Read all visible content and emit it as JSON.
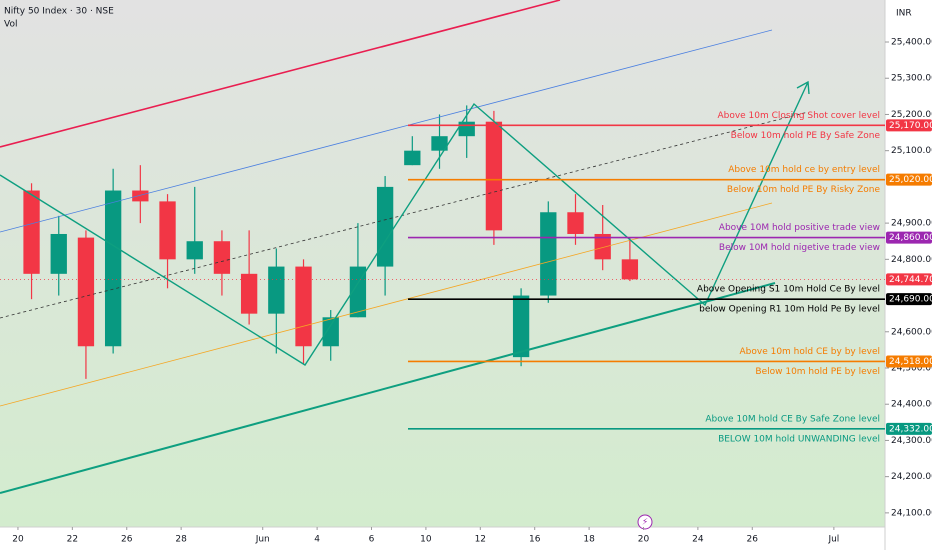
{
  "chart_data": {
    "type": "candlestick",
    "title": "Nifty 50 Index · 30 · NSE",
    "subtitle": "Vol",
    "currency": "INR",
    "up_color": "#089981",
    "down_color": "#f23645",
    "x": [
      0,
      1,
      2,
      3,
      4,
      5,
      6,
      7,
      8,
      9,
      10,
      11,
      12,
      13,
      14,
      15,
      16,
      17,
      18,
      19,
      20,
      21,
      22
    ],
    "open": [
      24990,
      24760,
      24860,
      24560,
      24990,
      24960,
      24800,
      24850,
      24760,
      24650,
      24780,
      24560,
      24640,
      24780,
      25060,
      25100,
      25140,
      25180,
      24530,
      24700,
      24930,
      24870,
      24800
    ],
    "high": [
      25010,
      24920,
      24880,
      25050,
      25060,
      24980,
      25000,
      24880,
      24880,
      24830,
      24800,
      24660,
      24900,
      25030,
      25140,
      25200,
      25225,
      25210,
      24720,
      24960,
      24980,
      24950,
      24860
    ],
    "low": [
      24690,
      24700,
      24470,
      24540,
      24900,
      24720,
      24760,
      24700,
      24620,
      24540,
      24510,
      24520,
      24640,
      24700,
      25060,
      25050,
      25080,
      24840,
      24505,
      24680,
      24840,
      24770,
      24740
    ],
    "close": [
      24760,
      24870,
      24560,
      24990,
      24960,
      24800,
      24850,
      24760,
      24650,
      24780,
      24560,
      24640,
      24780,
      25000,
      25100,
      25140,
      25180,
      24880,
      24700,
      24930,
      24870,
      24800,
      24744.7
    ],
    "xlim": [
      -0.66,
      31.88
    ],
    "xticks": [
      {
        "value": 0,
        "label": "20"
      },
      {
        "value": 2,
        "label": "22"
      },
      {
        "value": 4,
        "label": "26"
      },
      {
        "value": 6,
        "label": "28"
      },
      {
        "value": 9,
        "label": "Jun"
      },
      {
        "value": 11,
        "label": "4"
      },
      {
        "value": 13,
        "label": "6"
      },
      {
        "value": 15,
        "label": "10"
      },
      {
        "value": 17,
        "label": "12"
      },
      {
        "value": 19,
        "label": "16"
      },
      {
        "value": 21,
        "label": "18"
      },
      {
        "value": 23,
        "label": "20"
      },
      {
        "value": 25,
        "label": "24"
      },
      {
        "value": 27,
        "label": "26"
      },
      {
        "value": 30,
        "label": "Jul"
      }
    ],
    "ylim": [
      24061,
      25516
    ],
    "yticks": [
      {
        "value": 25400,
        "label": "25,400.00"
      },
      {
        "value": 25300,
        "label": "25,300.00"
      },
      {
        "value": 25200,
        "label": "25,200.00"
      },
      {
        "value": 25100,
        "label": "25,100.00"
      },
      {
        "value": 24900,
        "label": "24,900.00"
      },
      {
        "value": 24800,
        "label": "24,800.00"
      },
      {
        "value": 24600,
        "label": "24,600.00"
      },
      {
        "value": 24500,
        "label": "24,500.00"
      },
      {
        "value": 24400,
        "label": "24,400.00"
      },
      {
        "value": 24300,
        "label": "24,300.00"
      },
      {
        "value": 24200,
        "label": "24,200.00"
      },
      {
        "value": 24100,
        "label": "24,100.00"
      }
    ],
    "last_price": {
      "value": 24744.7,
      "label": "24,744.70",
      "color": "#f23645"
    },
    "levels": [
      {
        "value": 25170,
        "label": "25,170.00",
        "color": "#f23645",
        "above": "Above 10m Closing Shot cover level",
        "below": "Below 10m hold PE By Safe Zone"
      },
      {
        "value": 25020,
        "label": "25,020.00",
        "color": "#f57c00",
        "above": "Above 10m hold ce by entry level",
        "below": "Below 10m hold PE By Risky Zone"
      },
      {
        "value": 24860,
        "label": "24,860.00",
        "color": "#9c27b0",
        "above": "Above 10M hold positive trade view",
        "below": "Below 10M hold nigetive trade view"
      },
      {
        "value": 24690,
        "label": "24,690.00",
        "color": "#000000",
        "above": "Above Opening S1 10m Hold Ce By level",
        "below": "below Opening R1 10m Hold Pe By level"
      },
      {
        "value": 24518,
        "label": "24,518.00",
        "color": "#f57c00",
        "above": "Above 10m hold CE by by level",
        "below": "Below 10m hold PE by level"
      },
      {
        "value": 24332,
        "label": "24,332.00",
        "color": "#089981",
        "above": "Above 10M hold CE By Safe Zone level",
        "below": "BELOW 10M hold UNWANDING level"
      }
    ]
  }
}
